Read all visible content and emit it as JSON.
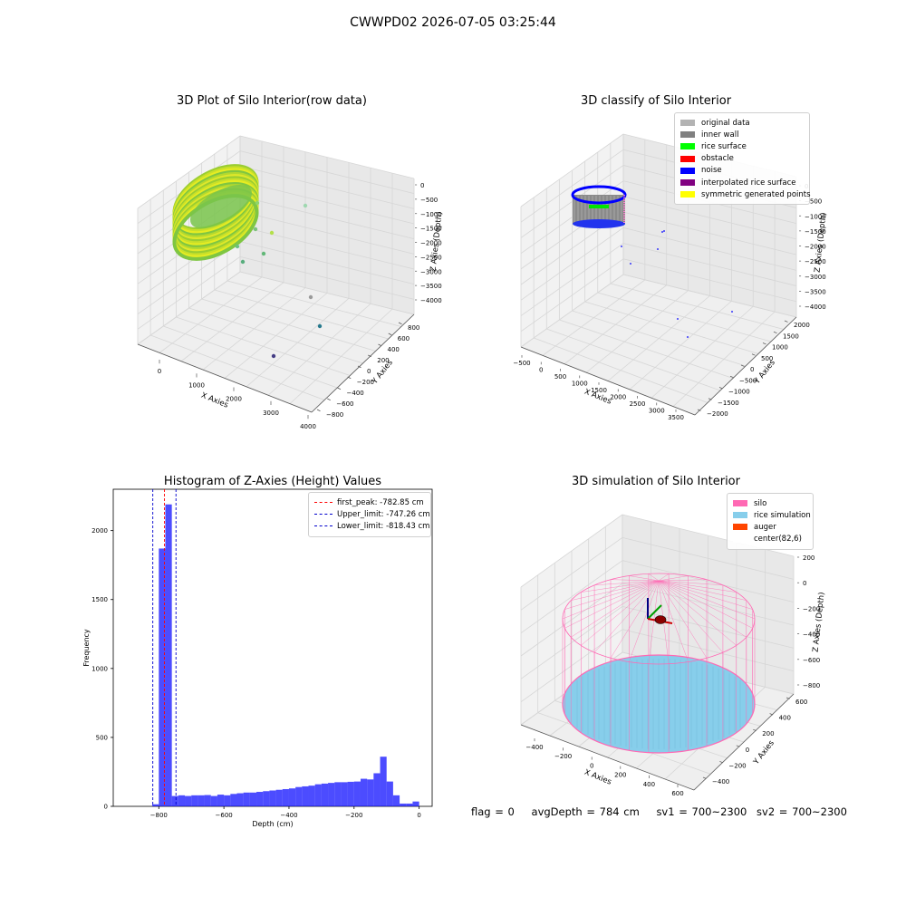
{
  "suptitle": "CWWPD02 2026-07-05 03:25:44",
  "panels": {
    "raw": {
      "title": "3D Plot of Silo Interior(row data)",
      "xlabel": "X Axies",
      "ylabel": "Y Axies",
      "zlabel": "Z Axies (Depth)",
      "xticks": [
        "0",
        "1000",
        "2000",
        "3000",
        "4000"
      ],
      "yticks": [
        "800",
        "600",
        "400",
        "200",
        "0",
        "−200",
        "−400",
        "−600",
        "−800"
      ],
      "zticks": [
        "0",
        "−500",
        "−1000",
        "−1500",
        "−2000",
        "−2500",
        "−3000",
        "−3500",
        "−4000"
      ]
    },
    "classify": {
      "title": "3D classify of Silo Interior",
      "xlabel": "X Axies",
      "ylabel": "Y Axies",
      "zlabel": "Z Axies (Depth)",
      "xticks": [
        "−500",
        "0",
        "500",
        "1000",
        "1500",
        "2000",
        "2500",
        "3000",
        "3500"
      ],
      "yticks": [
        "2000",
        "1500",
        "1000",
        "500",
        "0",
        "−500",
        "−1000",
        "−1500",
        "−2000"
      ],
      "zticks": [
        "0",
        "−500",
        "−1000",
        "−1500",
        "−2000",
        "−2500",
        "−3000",
        "−3500",
        "−4000"
      ],
      "legend": [
        {
          "label": "original data",
          "color": "#b3b3b3"
        },
        {
          "label": "inner wall",
          "color": "#808080"
        },
        {
          "label": "rice surface",
          "color": "#00ff00"
        },
        {
          "label": "obstacle",
          "color": "#ff0000"
        },
        {
          "label": "noise",
          "color": "#0000ff"
        },
        {
          "label": "interpolated rice surface",
          "color": "#800080"
        },
        {
          "label": "symmetric generated points",
          "color": "#ffff00"
        }
      ]
    },
    "simulation": {
      "title": "3D simulation of Silo Interior",
      "xlabel": "X Axies",
      "ylabel": "Y Axies",
      "zlabel": "Z Axies (Depth)",
      "xticks": [
        "−400",
        "−200",
        "0",
        "200",
        "400",
        "600"
      ],
      "yticks": [
        "600",
        "400",
        "200",
        "0",
        "−200",
        "−400"
      ],
      "zticks": [
        "200",
        "0",
        "−200",
        "−400",
        "−600",
        "−800"
      ],
      "legend": [
        {
          "label": "silo",
          "color": "#ff69b4"
        },
        {
          "label": "rice simulation",
          "color": "#87ceeb"
        },
        {
          "label": "auger",
          "color": "#ff4500"
        },
        {
          "label": "center(82,6)",
          "color": "#ffffff"
        }
      ]
    }
  },
  "chart_data": [
    {
      "type": "scatter",
      "title": "3D Plot of Silo Interior(row data)",
      "xlabel": "X Axies",
      "ylabel": "Y Axies",
      "zlabel": "Z Axies (Depth)",
      "xlim": [
        -500,
        4000
      ],
      "ylim": [
        -800,
        800
      ],
      "zlim": [
        -4200,
        0
      ],
      "note_colormap": "viridis by depth"
    },
    {
      "type": "scatter",
      "title": "3D classify of Silo Interior",
      "xlabel": "X Axies",
      "ylabel": "Y Axies",
      "zlabel": "Z Axies (Depth)",
      "xlim": [
        -500,
        3700
      ],
      "ylim": [
        -2000,
        2000
      ],
      "zlim": [
        -4000,
        0
      ]
    },
    {
      "type": "bar",
      "title": "Histogram of Z-Axies (Height) Values",
      "xlabel": "Depth (cm)",
      "ylabel": "Frequency",
      "xlim": [
        -940,
        40
      ],
      "ylim": [
        0,
        2300
      ],
      "bin_width": 20,
      "bin_starts": [
        -820,
        -800,
        -780,
        -760,
        -740,
        -720,
        -700,
        -680,
        -660,
        -640,
        -620,
        -600,
        -580,
        -560,
        -540,
        -520,
        -500,
        -480,
        -460,
        -440,
        -420,
        -400,
        -380,
        -360,
        -340,
        -320,
        -300,
        -280,
        -260,
        -240,
        -220,
        -200,
        -180,
        -160,
        -140,
        -120,
        -100,
        -80,
        -60,
        -40,
        -20
      ],
      "values": [
        15,
        1870,
        2190,
        75,
        80,
        75,
        80,
        80,
        82,
        75,
        85,
        80,
        90,
        95,
        100,
        100,
        105,
        110,
        115,
        120,
        125,
        130,
        140,
        145,
        150,
        160,
        165,
        170,
        175,
        175,
        178,
        180,
        200,
        195,
        240,
        360,
        180,
        80,
        20,
        20,
        35
      ],
      "xticks": [
        "−800",
        "−600",
        "−400",
        "−200",
        "0"
      ],
      "yticks": [
        "0",
        "500",
        "1000",
        "1500",
        "2000"
      ],
      "color": "#0000ff",
      "lines": [
        {
          "label": "first_peak: -782.85 cm",
          "x": -782.85,
          "color": "#ff0000"
        },
        {
          "label": "Upper_limit: -747.26 cm",
          "x": -747.26,
          "color": "#0000cd"
        },
        {
          "label": "Lower_limit: -818.43 cm",
          "x": -818.43,
          "color": "#0000cd"
        }
      ]
    },
    {
      "type": "scatter",
      "title": "3D simulation of Silo Interior",
      "xlabel": "X Axies",
      "ylabel": "Y Axies",
      "zlabel": "Z Axies (Depth)",
      "xlim": [
        -500,
        650
      ],
      "ylim": [
        -500,
        650
      ],
      "zlim": [
        -880,
        300
      ]
    }
  ],
  "footer": {
    "flag": "flag = 0",
    "avg": "avgDepth = 784 cm",
    "sv1": "sv1 = 700~2300",
    "sv2": "sv2 = 700~2300"
  }
}
